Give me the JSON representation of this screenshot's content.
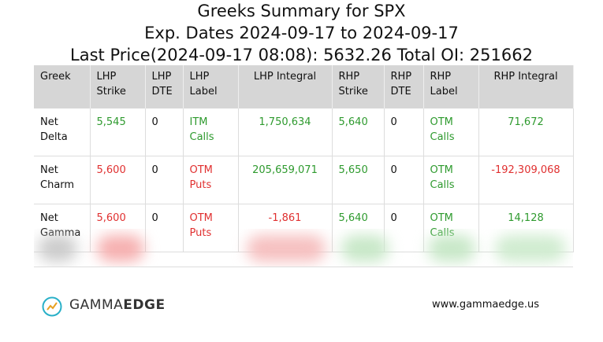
{
  "title_lines": [
    "Greeks Summary for SPX",
    "Exp. Dates 2024-09-17 to 2024-09-17",
    "Last Price(2024-09-17 08:08): 5632.26 Total OI: 251662"
  ],
  "table": {
    "header": [
      "Greek",
      "LHP Strike",
      "LHP DTE",
      "LHP Label",
      "LHP Integral",
      "RHP Strike",
      "RHP DTE",
      "RHP Label",
      "RHP Integral"
    ],
    "rows": [
      [
        "Net Delta",
        "5,545",
        "0",
        "ITM Calls",
        "1,750,634",
        "5,640",
        "0",
        "OTM Calls",
        "71,672"
      ],
      [
        "Net Charm",
        "5,600",
        "0",
        "OTM Puts",
        "205,659,071",
        "5,650",
        "0",
        "OTM Calls",
        "-192,309,068"
      ],
      [
        "Net Gamma",
        "5,600",
        "0",
        "OTM Puts",
        "-1,861",
        "5,640",
        "0",
        "OTM Calls",
        "14,128"
      ]
    ],
    "cell_colors": [
      [
        "#111111",
        "#2e9a2e",
        "#111111",
        "#2e9a2e",
        "#2e9a2e",
        "#2e9a2e",
        "#111111",
        "#2e9a2e",
        "#2e9a2e"
      ],
      [
        "#111111",
        "#e03030",
        "#111111",
        "#e03030",
        "#2e9a2e",
        "#2e9a2e",
        "#111111",
        "#2e9a2e",
        "#e03030"
      ],
      [
        "#111111",
        "#e03030",
        "#111111",
        "#e03030",
        "#e03030",
        "#2e9a2e",
        "#111111",
        "#2e9a2e",
        "#2e9a2e"
      ]
    ]
  },
  "footer": {
    "brand_light": "GAMMA",
    "brand_bold": "EDGE",
    "url": "www.gammaedge.us"
  }
}
